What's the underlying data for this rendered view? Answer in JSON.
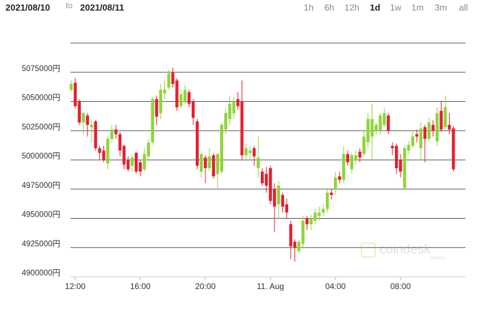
{
  "header": {
    "from": "2021/08/10",
    "to_word": "to",
    "to": "2021/08/11",
    "ranges": [
      "1h",
      "6h",
      "12h",
      "1d",
      "1w",
      "1m",
      "3m",
      "all"
    ],
    "active_range": 3
  },
  "watermark": {
    "brand": "coindesk",
    "sub": "JAPAN"
  },
  "chart_data": {
    "type": "candlestick",
    "categories": [
      null,
      "12:00",
      null,
      null,
      null,
      null,
      null,
      null,
      null,
      null,
      null,
      null,
      null,
      null,
      null,
      null,
      null,
      "16:00",
      null,
      null,
      null,
      null,
      null,
      null,
      null,
      null,
      null,
      null,
      null,
      null,
      null,
      null,
      null,
      "20:00",
      null,
      null,
      null,
      null,
      null,
      null,
      null,
      null,
      null,
      null,
      null,
      null,
      null,
      null,
      null,
      "11. Aug",
      null,
      null,
      null,
      null,
      null,
      null,
      null,
      null,
      null,
      null,
      null,
      null,
      null,
      null,
      null,
      "04:00",
      null,
      null,
      null,
      null,
      null,
      null,
      null,
      null,
      null,
      null,
      null,
      null,
      null,
      null,
      null,
      "08:00",
      null,
      null,
      null,
      null,
      null,
      null,
      null,
      null,
      null,
      null,
      null,
      null,
      null
    ],
    "up_color": "#8fd43a",
    "down_color": "#e3202f",
    "open": [
      5060000,
      5066000,
      5050000,
      5032000,
      5038000,
      5028000,
      5033000,
      5010000,
      5008000,
      4997000,
      5018000,
      5026000,
      5022000,
      5012000,
      5000000,
      4995000,
      5006000,
      4998000,
      4992000,
      5003000,
      5015000,
      5052000,
      5040000,
      5057000,
      5062000,
      5075000,
      5068000,
      5046000,
      5050000,
      5058000,
      5050000,
      5033000,
      4990000,
      5002000,
      4993000,
      5004000,
      4988000,
      4990000,
      5026000,
      5035000,
      5040000,
      5052000,
      5050000,
      5004000,
      5006000,
      5010000,
      4993000,
      4990000,
      4988000,
      4993000,
      4975000,
      4962000,
      4970000,
      4962000,
      4945000,
      4930000,
      4922000,
      4928000,
      4950000,
      4945000,
      4948000,
      4952000,
      4955000,
      4958000,
      4972000,
      4975000,
      4986000,
      4983000,
      5005000,
      4992000,
      5000000,
      5007000,
      5005000,
      5015000,
      5020000,
      5025000,
      5025000,
      5030000,
      5038000,
      5012000,
      5012000,
      5000000,
      4976000,
      5008000,
      5012000,
      5022000,
      5010000,
      5028000,
      5018000,
      5030000,
      5016000,
      5042000,
      5028000,
      5030000,
      5027000
    ],
    "high": [
      5068000,
      5070000,
      5052000,
      5041000,
      5040000,
      5034000,
      5034000,
      5012000,
      5012000,
      5020000,
      5030000,
      5030000,
      5024000,
      5013000,
      5003000,
      5004000,
      5007000,
      5000000,
      5010000,
      5018000,
      5054000,
      5055000,
      5065000,
      5068000,
      5077000,
      5079000,
      5070000,
      5060000,
      5064000,
      5060000,
      5052000,
      5035000,
      5006000,
      5004000,
      5010000,
      5006000,
      5006000,
      5032000,
      5044000,
      5055000,
      5054000,
      5058000,
      5068000,
      5014000,
      5012000,
      5012000,
      5020000,
      4993000,
      4994000,
      4995000,
      4980000,
      4982000,
      4972000,
      4967000,
      4948000,
      4932000,
      4932000,
      4952000,
      4952000,
      4953000,
      4958000,
      4960000,
      4962000,
      4975000,
      4975000,
      4990000,
      4990000,
      5012000,
      5008000,
      5006000,
      5008000,
      5010000,
      5025000,
      5040000,
      5048000,
      5032000,
      5040000,
      5044000,
      5040000,
      5015000,
      5014000,
      5005000,
      5012000,
      5016000,
      5025000,
      5026000,
      5032000,
      5030000,
      5036000,
      5034000,
      5045000,
      5050000,
      5055000,
      5040000,
      5029000
    ],
    "low": [
      5058000,
      5044000,
      5030000,
      5022000,
      5020000,
      5015000,
      5008000,
      5000000,
      4998000,
      4992000,
      5015000,
      5018000,
      5003000,
      4992000,
      4990000,
      4990000,
      4988000,
      4986000,
      4990000,
      5000000,
      5013000,
      5030000,
      5035000,
      5052000,
      5060000,
      5062000,
      5042000,
      5044000,
      5048000,
      5045000,
      5030000,
      4992000,
      4985000,
      4980000,
      4990000,
      4984000,
      4976000,
      4988000,
      5022000,
      5030000,
      5035000,
      5043000,
      5000000,
      4999000,
      5000000,
      4995000,
      4985000,
      4978000,
      4972000,
      4962000,
      4938000,
      4950000,
      4955000,
      4950000,
      4915000,
      4913000,
      4920000,
      4924000,
      4940000,
      4940000,
      4945000,
      4948000,
      4952000,
      4955000,
      4966000,
      4970000,
      4980000,
      4980000,
      4995000,
      4988000,
      4996000,
      4998000,
      5003000,
      5010000,
      5000000,
      5022000,
      5022000,
      5028000,
      5022000,
      5004000,
      4988000,
      4985000,
      4975000,
      5005000,
      5010000,
      5015000,
      5000000,
      4998000,
      5016000,
      5020000,
      5012000,
      5024000,
      5025000,
      5022000,
      4990000
    ],
    "close": [
      5065000,
      5046000,
      5032000,
      5040000,
      5030000,
      5030000,
      5010000,
      5006000,
      5000000,
      5018000,
      5026000,
      5022000,
      5008000,
      4996000,
      4992000,
      5002000,
      4990000,
      4990000,
      5005000,
      5015000,
      5052000,
      5037000,
      5060000,
      5060000,
      5074000,
      5065000,
      5045000,
      5056000,
      5060000,
      5048000,
      5036000,
      4995000,
      5005000,
      4993000,
      5003000,
      4986000,
      5005000,
      5030000,
      5040000,
      5048000,
      5050000,
      5046000,
      5004000,
      5010000,
      5008000,
      5003000,
      5002000,
      4980000,
      4978000,
      4965000,
      4960000,
      4978000,
      4960000,
      4955000,
      4926000,
      4925000,
      4930000,
      4948000,
      4945000,
      4950000,
      4955000,
      4955000,
      4958000,
      4972000,
      4970000,
      4985000,
      4983000,
      5005000,
      4998000,
      5004000,
      5004000,
      5002000,
      5020000,
      5035000,
      5035000,
      5030000,
      5038000,
      5040000,
      5025000,
      5010000,
      4993000,
      4990000,
      5010000,
      5013000,
      5020000,
      5020000,
      5027000,
      5018000,
      5032000,
      5025000,
      5040000,
      5026000,
      5045000,
      5026000,
      4992000
    ],
    "ylim": [
      4900000,
      5100000
    ],
    "yticks": [
      {
        "value": 4900000,
        "label": "4900000円"
      },
      {
        "value": 4925000,
        "label": "4925000円"
      },
      {
        "value": 4950000,
        "label": "4950000円"
      },
      {
        "value": 4975000,
        "label": "4975000円"
      },
      {
        "value": 5000000,
        "label": "5000000円"
      },
      {
        "value": 5025000,
        "label": "5025000円"
      },
      {
        "value": 5050000,
        "label": "5050000円"
      },
      {
        "value": 5075000,
        "label": "5075000円"
      }
    ],
    "grid": true
  }
}
